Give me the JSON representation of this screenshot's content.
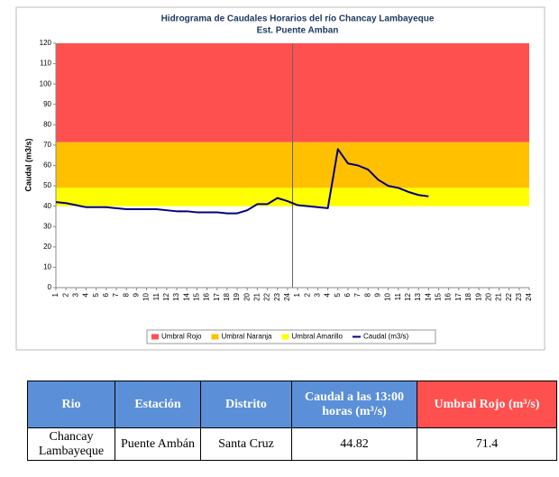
{
  "chart_data": {
    "type": "line",
    "title": "Hidrograma de Caudales Horarios del río Chancay Lambayeque",
    "subtitle": "Est. Puente Amban",
    "y_label": "Caudal  (m3/s)",
    "categories": [
      "1",
      "2",
      "3",
      "4",
      "5",
      "6",
      "7",
      "8",
      "9",
      "10",
      "11",
      "12",
      "13",
      "14",
      "15",
      "16",
      "17",
      "18",
      "19",
      "20",
      "21",
      "22",
      "23",
      "24",
      "1",
      "2",
      "3",
      "4",
      "5",
      "6",
      "7",
      "8",
      "9",
      "10",
      "11",
      "12",
      "13",
      "14",
      "15",
      "16",
      "17",
      "18",
      "19",
      "20",
      "21",
      "22",
      "23",
      "24"
    ],
    "bands": [
      {
        "name": "Umbral Rojo",
        "color": "#ff5050",
        "from": 71.4,
        "to": 120
      },
      {
        "name": "Umbral Naranja",
        "color": "#ffc000",
        "from": 49,
        "to": 71.4
      },
      {
        "name": "Umbral Amarillo",
        "color": "#ffff00",
        "from": 40,
        "to": 49
      }
    ],
    "series": [
      {
        "name": "Caudal (m3/s)",
        "color": "#000080",
        "values": [
          42,
          41.5,
          40.5,
          39.5,
          39.5,
          39.5,
          39,
          38.5,
          38.5,
          38.5,
          38.5,
          38,
          37.5,
          37.5,
          37,
          37,
          37,
          36.5,
          36.5,
          38,
          41,
          41,
          44,
          42.5,
          40.5,
          40,
          39.5,
          39,
          68,
          61,
          60,
          58,
          53,
          50,
          49,
          47,
          45.5,
          44.82,
          null,
          null,
          null,
          null,
          null,
          null,
          null,
          null,
          null,
          null
        ]
      }
    ],
    "ylim": [
      0,
      120
    ],
    "yticks": [
      0,
      10,
      20,
      30,
      40,
      50,
      60,
      70,
      80,
      90,
      100,
      110,
      120
    ]
  },
  "table": {
    "header": [
      "Rio",
      "Estación",
      "Distrito",
      "Caudal a las 13:00 horas (m³/s)",
      "Umbral Rojo (m³/s)"
    ],
    "rows": [
      [
        "Chancay Lambayeque",
        "Puente Ambán",
        "Santa Cruz",
        44.82,
        71.4
      ]
    ]
  }
}
